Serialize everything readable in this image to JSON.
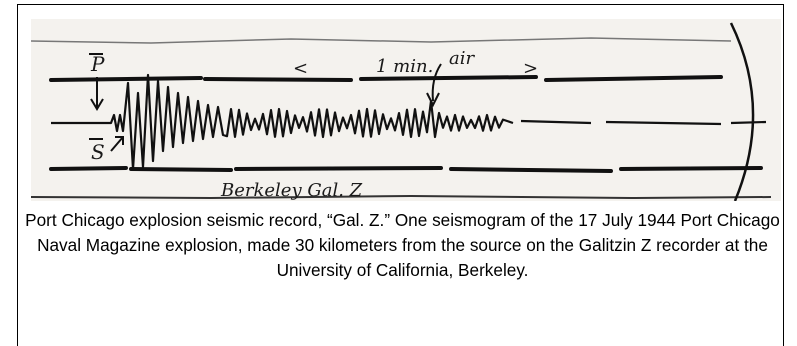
{
  "figure": {
    "annotations": {
      "p_label": "P",
      "s_label": "S",
      "interval_label": "1 min.",
      "air_label": "air",
      "left_bracket": "<",
      "right_bracket": ">",
      "station_label": "Berkeley Gal. Z"
    }
  },
  "caption": {
    "text": "Port Chicago explosion seismic record, “Gal. Z.” One seismogram of the 17 July 1944 Port Chicago Naval Magazine explosion, made 30 kilometers from the source on the Galitzin Z recorder at the University of California, Berkeley."
  }
}
